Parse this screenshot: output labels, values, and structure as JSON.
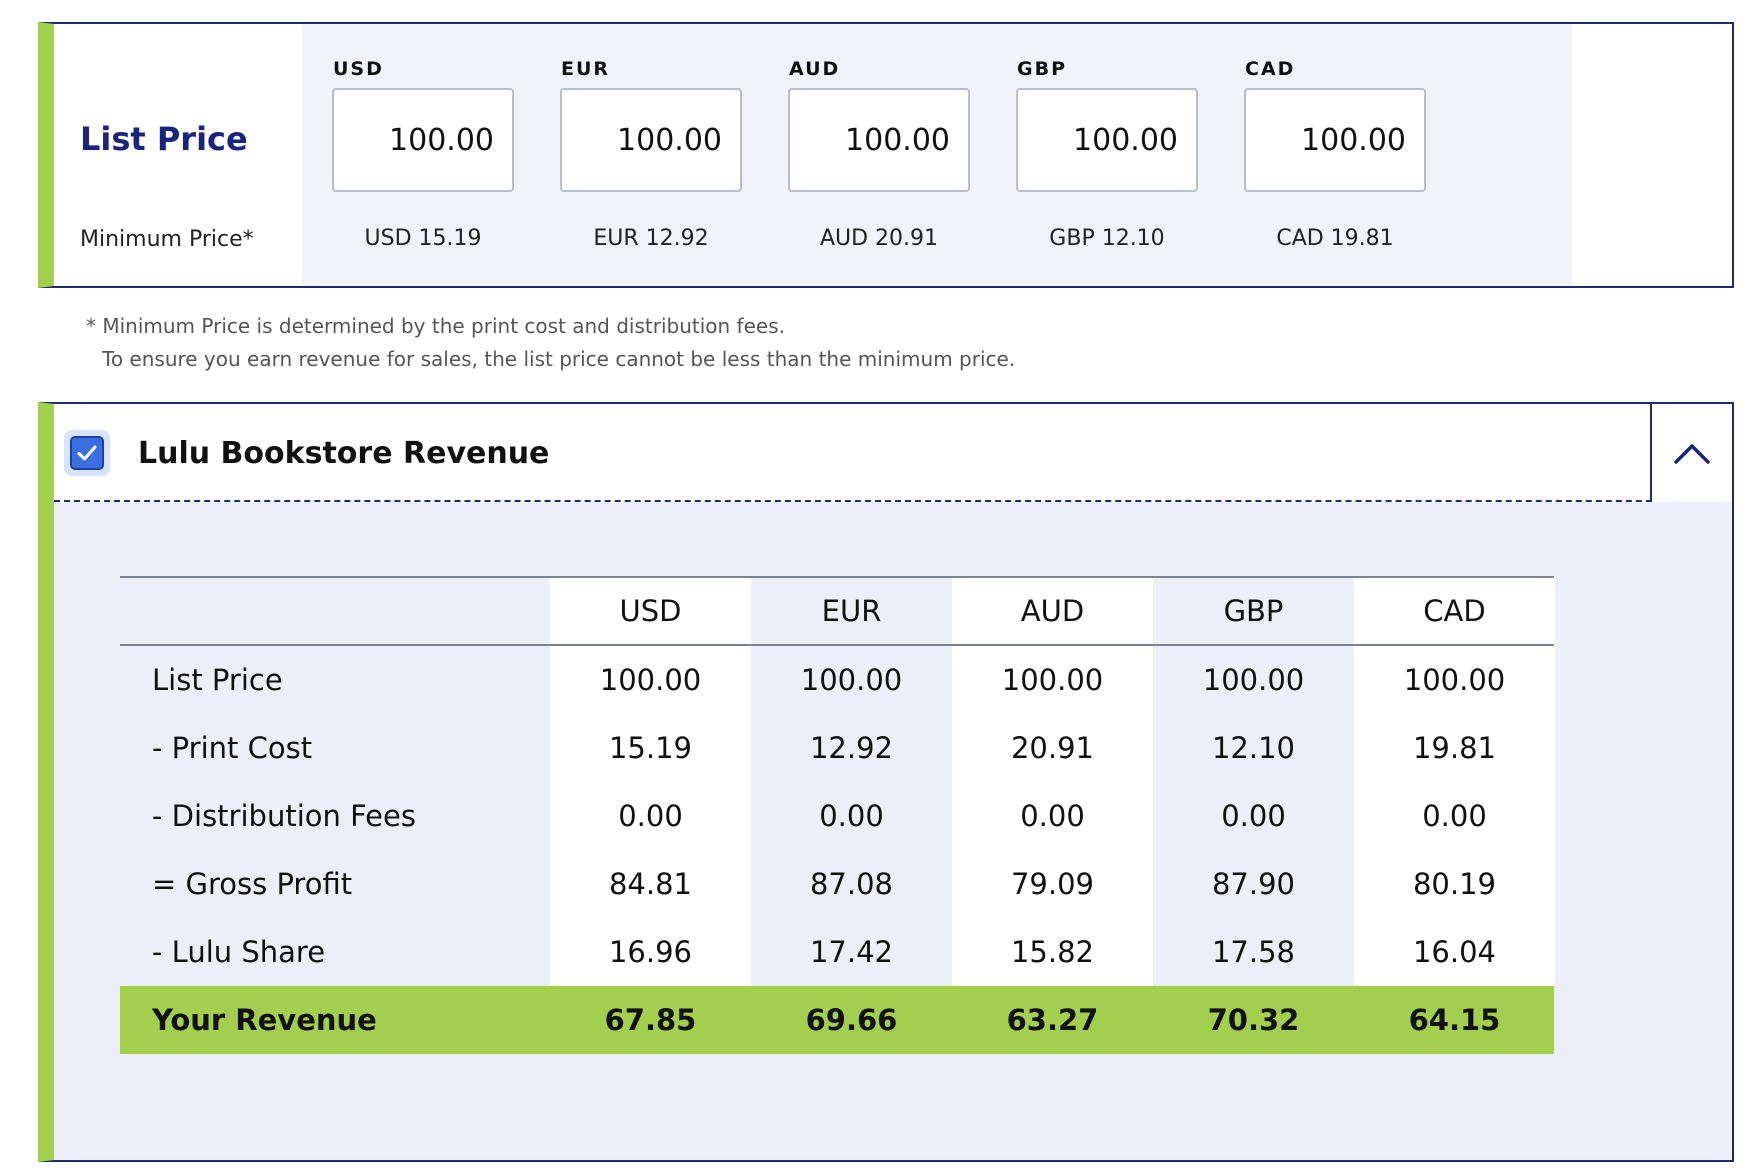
{
  "list_price": {
    "title": "List Price",
    "min_label": "Minimum Price*",
    "currencies": [
      {
        "code": "USD",
        "value": "100.00",
        "minimum": "USD 15.19"
      },
      {
        "code": "EUR",
        "value": "100.00",
        "minimum": "EUR 12.92"
      },
      {
        "code": "AUD",
        "value": "100.00",
        "minimum": "AUD 20.91"
      },
      {
        "code": "GBP",
        "value": "100.00",
        "minimum": "GBP 12.10"
      },
      {
        "code": "CAD",
        "value": "100.00",
        "minimum": "CAD 19.81"
      }
    ]
  },
  "footnote": {
    "line1": "* Minimum Price is determined by the print cost and distribution fees.",
    "line2": "To ensure you earn revenue for sales, the list price cannot be less than the minimum price."
  },
  "revenue": {
    "title": "Lulu Bookstore Revenue",
    "checked": true,
    "headers": [
      "USD",
      "EUR",
      "AUD",
      "GBP",
      "CAD"
    ],
    "rows": [
      {
        "label": "List Price",
        "values": [
          "100.00",
          "100.00",
          "100.00",
          "100.00",
          "100.00"
        ]
      },
      {
        "label": "- Print Cost",
        "values": [
          "15.19",
          "12.92",
          "20.91",
          "12.10",
          "19.81"
        ]
      },
      {
        "label": "- Distribution Fees",
        "values": [
          "0.00",
          "0.00",
          "0.00",
          "0.00",
          "0.00"
        ]
      },
      {
        "label": "= Gross Profit",
        "values": [
          "84.81",
          "87.08",
          "79.09",
          "87.90",
          "80.19"
        ]
      },
      {
        "label": "- Lulu Share",
        "values": [
          "16.96",
          "17.42",
          "15.82",
          "17.58",
          "16.04"
        ]
      }
    ],
    "total": {
      "label": "Your Revenue",
      "values": [
        "67.85",
        "69.66",
        "63.27",
        "70.32",
        "64.15"
      ]
    }
  },
  "colors": {
    "accent_green": "#a3cf4f",
    "border_navy": "#1f2a73",
    "title_navy": "#1a237e",
    "checkbox_blue": "#3b6fe0"
  },
  "icons": {
    "checkbox": "check-icon",
    "collapse": "chevron-up-icon"
  }
}
